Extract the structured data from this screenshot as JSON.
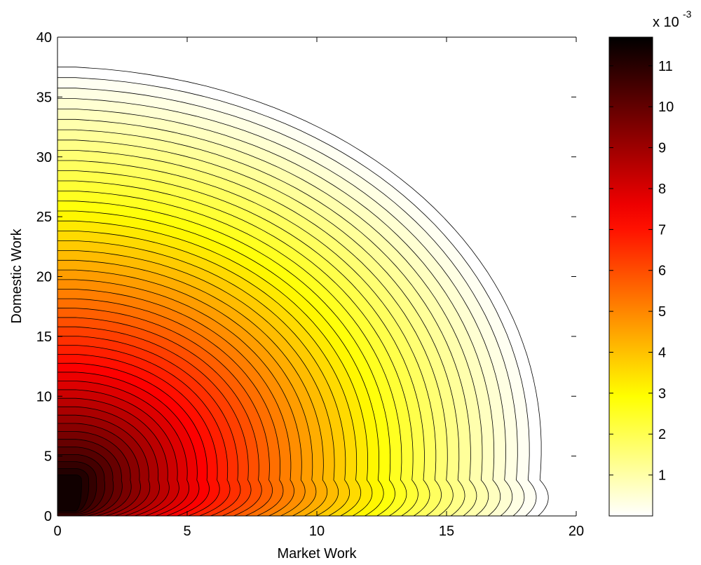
{
  "chart_data": {
    "type": "contour",
    "title": "",
    "xlabel": "Market Work",
    "ylabel": "Domestic Work",
    "xlim": [
      0,
      20
    ],
    "ylim": [
      0,
      40
    ],
    "x_ticks": [
      "0",
      "5",
      "10",
      "15",
      "20"
    ],
    "y_ticks": [
      "0",
      "5",
      "10",
      "15",
      "20",
      "25",
      "30",
      "35",
      "40"
    ],
    "grid": false,
    "colormap": "hot (reversed)",
    "density": {
      "peak_x": 0.7,
      "peak_y": 3.0,
      "peak_value": 0.0117,
      "scale_x": 5.0,
      "scale_y_below_peak": 2.4,
      "scale_y_above_peak": 8.6,
      "outer_extent_x_at_y5": 18.6,
      "outer_extent_y_at_x0": 37.5
    },
    "contour_levels": 45,
    "colorbar": {
      "multiplier": "x 10",
      "exponent": "-3",
      "ticks": [
        "1",
        "2",
        "3",
        "4",
        "5",
        "6",
        "7",
        "8",
        "9",
        "10",
        "11"
      ],
      "tick_values": [
        1,
        2,
        3,
        4,
        5,
        6,
        7,
        8,
        9,
        10,
        11
      ],
      "range": [
        0,
        11.7
      ]
    }
  }
}
